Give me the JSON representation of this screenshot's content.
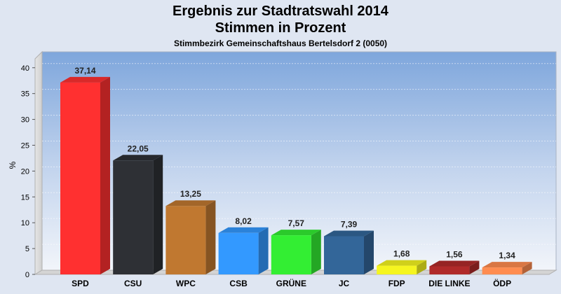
{
  "chart_data": {
    "type": "bar",
    "title": "Ergebnis zur Stadtratswahl 2014",
    "subtitle_line": "Stimmen in Prozent",
    "subtitle": "Stimmbezirk Gemeinschaftshaus Bertelsdorf 2 (0050)",
    "ylabel": "%",
    "xlabel": "",
    "ylim": [
      0,
      42
    ],
    "yticks": [
      0,
      5,
      10,
      15,
      20,
      25,
      30,
      35,
      40
    ],
    "grid": true,
    "categories": [
      "SPD",
      "CSU",
      "WPC",
      "CSB",
      "GRÜNE",
      "JC",
      "FDP",
      "DIE LINKE",
      "ÖDP"
    ],
    "values": [
      37.14,
      22.05,
      13.25,
      8.02,
      7.57,
      7.39,
      1.68,
      1.56,
      1.34
    ],
    "value_labels": [
      "37,14",
      "22,05",
      "13,25",
      "8,02",
      "7,57",
      "7,39",
      "1,68",
      "1,56",
      "1,34"
    ],
    "colors": [
      "#ff3030",
      "#2e3035",
      "#c07830",
      "#3399ff",
      "#33ee33",
      "#336699",
      "#f5f520",
      "#b02a2a",
      "#ff8c50"
    ]
  }
}
